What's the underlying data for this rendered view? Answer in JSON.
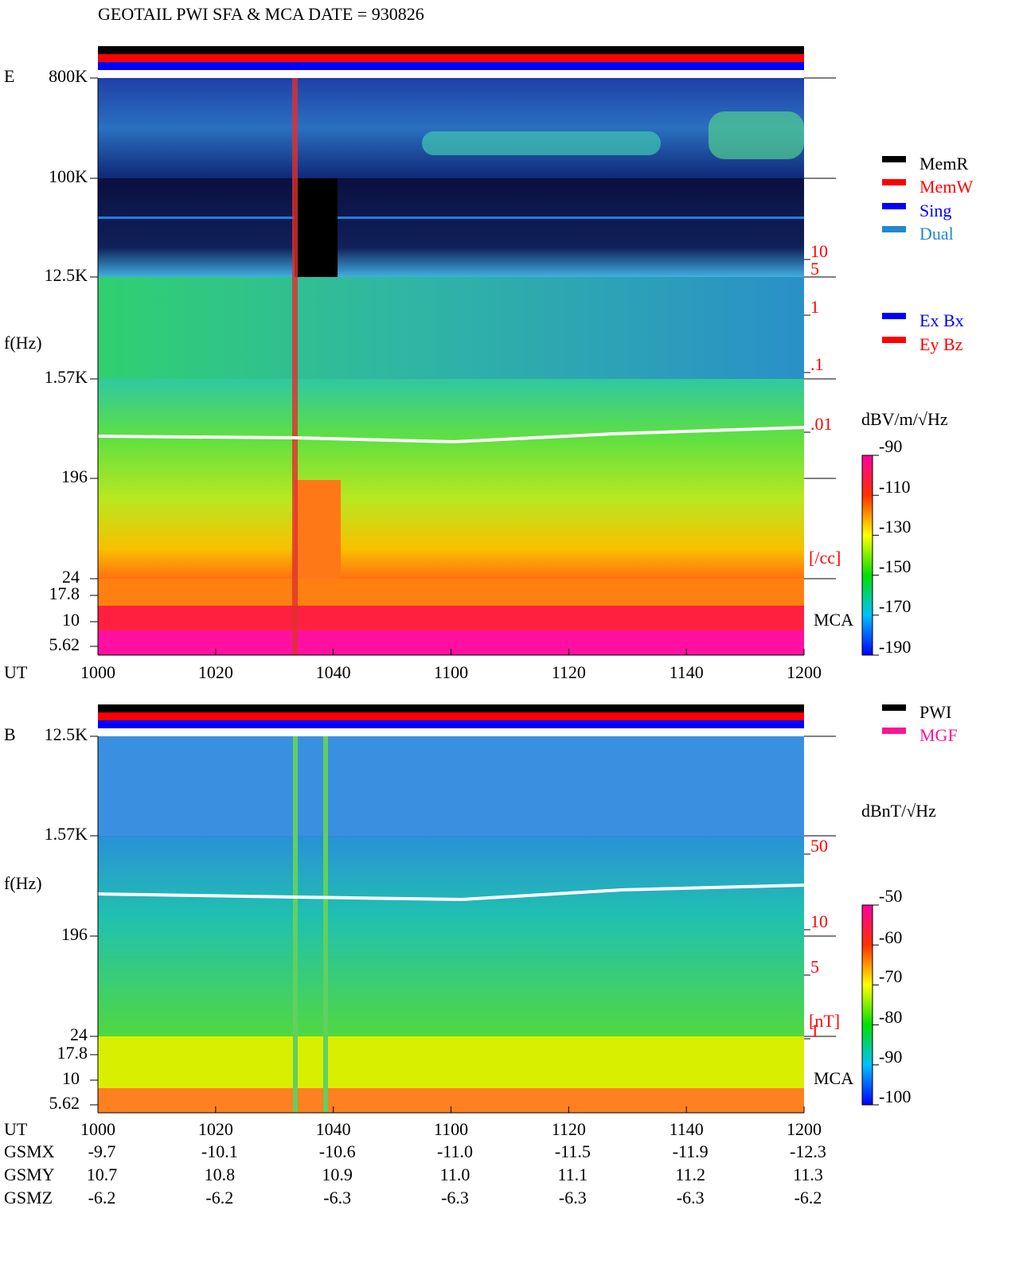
{
  "header": {
    "title": "GEOTAIL   PWI SFA & MCA   DATE = 930826"
  },
  "panels": [
    {
      "label": "E",
      "y_axis_label": "f(Hz)",
      "freq_ticks": [
        "800K",
        "100K",
        "12.5K",
        "1.57K",
        "196",
        "24",
        "17.8",
        "10",
        "5.62"
      ],
      "time_axis_label": "UT",
      "time_ticks": [
        "1000",
        "1020",
        "1040",
        "1100",
        "1120",
        "1140",
        "1200"
      ],
      "density_ticks": [
        "10",
        "5",
        "1",
        ".1",
        ".01"
      ],
      "density_unit": "[/cc]",
      "mca_label": "MCA",
      "legend": [
        {
          "name": "MemR",
          "color": "#000000"
        },
        {
          "name": "MemW",
          "color": "#ff0000"
        },
        {
          "name": "Sing",
          "color": "#0000ff"
        },
        {
          "name": "Dual",
          "color": "#2288cc"
        },
        {
          "name": "Ex Bx",
          "color": "#0000ff"
        },
        {
          "name": "Ey Bz",
          "color": "#ff0000"
        }
      ],
      "colorbar": {
        "label": "dBV/m/√Hz",
        "ticks": [
          "-90",
          "-110",
          "-130",
          "-150",
          "-170",
          "-190"
        ]
      }
    },
    {
      "label": "B",
      "y_axis_label": "f(Hz)",
      "freq_ticks": [
        "12.5K",
        "1.57K",
        "196",
        "24",
        "17.8",
        "10",
        "5.62"
      ],
      "time_axis_label": "UT",
      "time_ticks": [
        "1000",
        "1020",
        "1040",
        "1100",
        "1120",
        "1140",
        "1200"
      ],
      "density_ticks": [
        "50",
        "10",
        "5",
        "1"
      ],
      "density_unit": "[nT]",
      "mca_label": "MCA",
      "legend": [
        {
          "name": "PWI",
          "color": "#000000"
        },
        {
          "name": "MGF",
          "color": "#ff1493"
        }
      ],
      "colorbar": {
        "label": "dBnT/√Hz",
        "ticks": [
          "-50",
          "-60",
          "-70",
          "-80",
          "-90",
          "-100"
        ]
      }
    }
  ],
  "orbit": {
    "rows": [
      {
        "name": "GSMX",
        "values": [
          "-9.7",
          "-10.1",
          "-10.6",
          "-11.0",
          "-11.5",
          "-11.9",
          "-12.3"
        ]
      },
      {
        "name": "GSMY",
        "values": [
          "10.7",
          "10.8",
          "10.9",
          "11.0",
          "11.1",
          "11.2",
          "11.3"
        ]
      },
      {
        "name": "GSMZ",
        "values": [
          "-6.2",
          "-6.2",
          "-6.3",
          "-6.3",
          "-6.3",
          "-6.3",
          "-6.2"
        ]
      }
    ]
  }
}
